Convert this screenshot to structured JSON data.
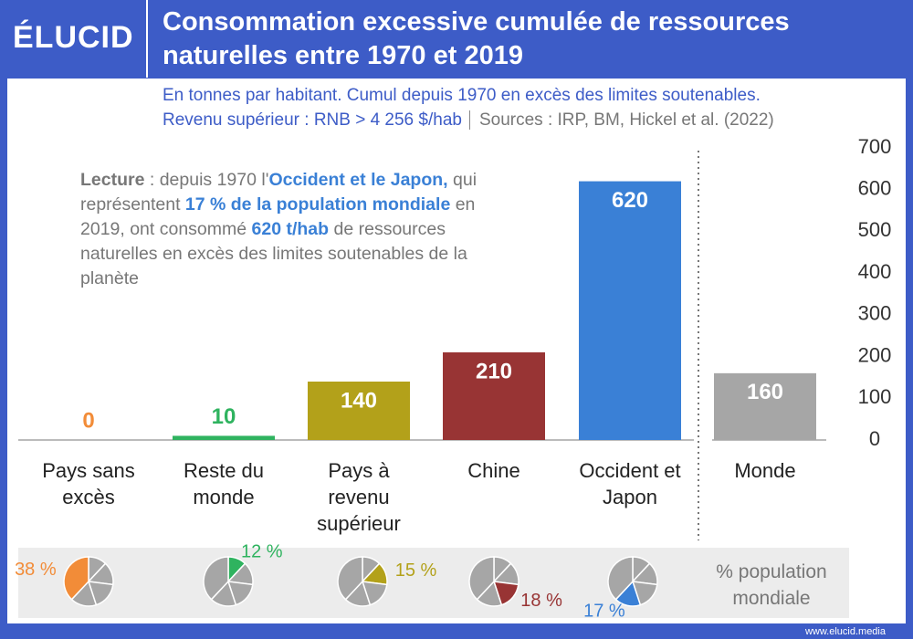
{
  "brand": "ÉLUCID",
  "footer": "www.elucid.media",
  "chart_data": {
    "type": "bar",
    "title": "Consommation excessive cumulée de ressources naturelles entre 1970 et 2019",
    "subtitle": "En tonnes par habitant. Cumul depuis 1970 en excès des limites soutenables.",
    "note": "Revenu supérieur : RNB > 4 256 $/hab",
    "sources": "Sources : IRP, BM, Hickel et al. (2022)",
    "annotation": [
      "Lecture",
      " : depuis 1970 l'",
      "Occident et le Japon,",
      " qui représentent ",
      "17 % de la population mondiale",
      " en 2019, ont consommé ",
      "620 t/hab",
      " de ressources naturelles en excès des limites soutenables de la planète"
    ],
    "categories": [
      "Pays sans excès",
      "Reste du monde",
      "Pays à revenu supérieur",
      "Chine",
      "Occident et Japon",
      "Monde"
    ],
    "values": [
      0,
      10,
      140,
      210,
      620,
      160
    ],
    "colors": [
      "#f28c38",
      "#2fb35f",
      "#b3a11a",
      "#983434",
      "#3a80d6",
      "#a6a6a6"
    ],
    "ylim": [
      0,
      700
    ],
    "yticks": [
      0,
      100,
      200,
      300,
      400,
      500,
      600,
      700
    ],
    "population_share": {
      "label": "% population mondiale",
      "values": [
        38,
        12,
        15,
        18,
        17
      ],
      "value_labels": [
        "38 %",
        "12 %",
        "15 %",
        "18 %",
        "17 %"
      ]
    }
  }
}
